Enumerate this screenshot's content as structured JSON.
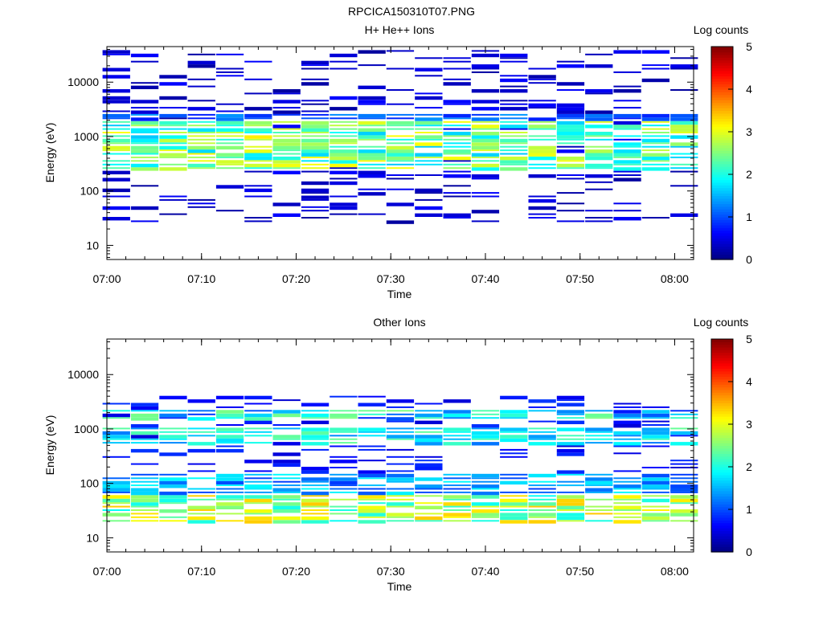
{
  "figure_title": "RPCICA150310T07.PNG",
  "colorbar": {
    "label": "Log counts",
    "ticks": [
      "0",
      "1",
      "2",
      "3",
      "4",
      "5"
    ],
    "range": [
      0,
      5
    ],
    "colormap": "jet"
  },
  "chart_data": [
    {
      "type": "heatmap",
      "title": "H+ He++ Ions",
      "xlabel": "Time",
      "ylabel": "Energy (eV)",
      "x_ticks": [
        "07:00",
        "07:10",
        "07:20",
        "07:30",
        "07:40",
        "07:50",
        "08:00"
      ],
      "x_range": [
        "07:00",
        "08:02"
      ],
      "y_scale": "log",
      "y_ticks": [
        "10",
        "100",
        "1000",
        "10000"
      ],
      "y_range": [
        5.5,
        45000
      ],
      "grid": false,
      "time_bins": [
        "07:01",
        "07:04",
        "07:07",
        "07:10",
        "07:13",
        "07:16",
        "07:19",
        "07:22",
        "07:25",
        "07:28",
        "07:31",
        "07:34",
        "07:37",
        "07:40",
        "07:43",
        "07:46",
        "07:49",
        "07:52",
        "07:55",
        "07:58",
        "08:01"
      ],
      "profile": {
        "bands": [
          {
            "e_low": 230,
            "e_high": 1900,
            "level_low": 1.6,
            "level_high": 3.2
          },
          {
            "e_low": 1900,
            "e_high": 2600,
            "level_low": 0.7,
            "level_high": 1.4
          }
        ],
        "sparse_range": [
          25,
          40000
        ],
        "sparse_level": 0.15
      }
    },
    {
      "type": "heatmap",
      "title": "Other Ions",
      "xlabel": "Time",
      "ylabel": "Energy (eV)",
      "x_ticks": [
        "07:00",
        "07:10",
        "07:20",
        "07:30",
        "07:40",
        "07:50",
        "08:00"
      ],
      "x_range": [
        "07:00",
        "08:02"
      ],
      "y_scale": "log",
      "y_ticks": [
        "10",
        "100",
        "1000",
        "10000"
      ],
      "y_range": [
        5.5,
        45000
      ],
      "grid": false,
      "time_bins": [
        "07:01",
        "07:04",
        "07:07",
        "07:10",
        "07:13",
        "07:16",
        "07:19",
        "07:22",
        "07:25",
        "07:28",
        "07:31",
        "07:34",
        "07:37",
        "07:40",
        "07:43",
        "07:46",
        "07:49",
        "07:52",
        "07:55",
        "07:58",
        "08:01"
      ],
      "profile": {
        "bands": [
          {
            "e_low": 17,
            "e_high": 60,
            "level_low": 1.9,
            "level_high": 3.4
          },
          {
            "e_low": 60,
            "e_high": 150,
            "level_low": 0.9,
            "level_high": 1.9
          },
          {
            "e_low": 500,
            "e_high": 1000,
            "level_low": 1.2,
            "level_high": 2.4
          },
          {
            "e_low": 1500,
            "e_high": 2300,
            "level_low": 1.0,
            "level_high": 2.5
          }
        ],
        "sparse_range": [
          150,
          4000
        ],
        "sparse_level": 0.4
      }
    }
  ]
}
